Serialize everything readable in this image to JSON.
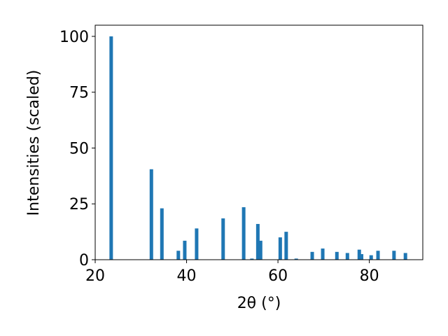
{
  "chart_data": {
    "type": "bar",
    "x_label": "2θ (°)",
    "y_label": "Intensities (scaled)",
    "x": [
      23.5,
      32.3,
      34.6,
      38.2,
      39.6,
      42.2,
      48.0,
      52.5,
      54.3,
      55.6,
      56.2,
      60.5,
      61.8,
      64.0,
      67.5,
      69.8,
      72.9,
      75.2,
      77.8,
      78.3,
      80.4,
      81.9,
      85.4,
      87.9
    ],
    "values": [
      100,
      40.5,
      23,
      4,
      8.5,
      14,
      18.5,
      23.5,
      0.5,
      16,
      8.5,
      10,
      12.5,
      0.5,
      3.5,
      5,
      3.5,
      3,
      4.5,
      2.5,
      2,
      4,
      4,
      3
    ],
    "color": "#1f77b4",
    "xlim": [
      20,
      91.7
    ],
    "ylim": [
      0,
      105
    ],
    "xticks": [
      20,
      40,
      60,
      80
    ],
    "yticks": [
      0,
      25,
      50,
      75,
      100
    ],
    "grid": false
  }
}
